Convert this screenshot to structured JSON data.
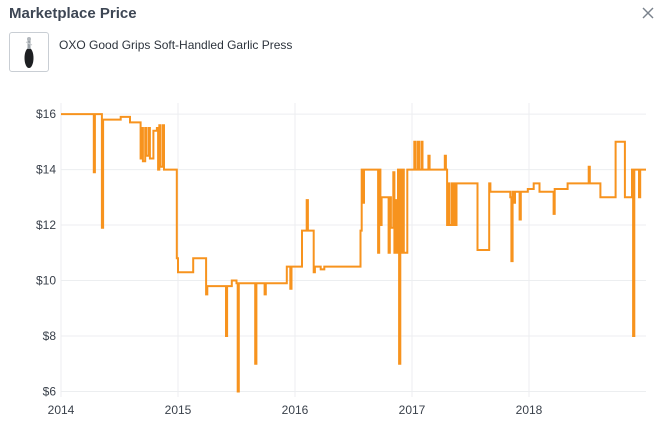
{
  "header": {
    "title": "Marketplace Price",
    "close_icon": "close-icon"
  },
  "product": {
    "name": "OXO Good Grips Soft-Handled Garlic Press",
    "thumbnail_icon": "garlic-press-thumbnail"
  },
  "colors": {
    "line": "#f7931e",
    "grid": "#eceef0",
    "text": "#3a414b"
  },
  "chart_data": {
    "type": "line",
    "title": "",
    "xlabel": "",
    "ylabel": "",
    "xlim": [
      2014.0,
      2019.0
    ],
    "ylim": [
      5.8,
      16.4
    ],
    "grid": true,
    "legend": "none",
    "x_ticks": [
      {
        "value": 2014,
        "label": "2014"
      },
      {
        "value": 2015,
        "label": "2015"
      },
      {
        "value": 2016,
        "label": "2016"
      },
      {
        "value": 2017,
        "label": "2017"
      },
      {
        "value": 2018,
        "label": "2018"
      }
    ],
    "y_ticks": [
      {
        "value": 6,
        "label": "$6"
      },
      {
        "value": 8,
        "label": "$8"
      },
      {
        "value": 10,
        "label": "$10"
      },
      {
        "value": 12,
        "label": "$12"
      },
      {
        "value": 14,
        "label": "$14"
      },
      {
        "value": 16,
        "label": "$16"
      }
    ],
    "series": [
      {
        "step": true,
        "points": [
          [
            2014.0,
            16.0
          ],
          [
            2014.27,
            16.0
          ],
          [
            2014.28,
            13.9
          ],
          [
            2014.29,
            16.0
          ],
          [
            2014.34,
            16.0
          ],
          [
            2014.35,
            11.9
          ],
          [
            2014.36,
            15.8
          ],
          [
            2014.4,
            15.8
          ],
          [
            2014.45,
            15.8
          ],
          [
            2014.51,
            15.9
          ],
          [
            2014.58,
            15.9
          ],
          [
            2014.59,
            15.7
          ],
          [
            2014.67,
            15.7
          ],
          [
            2014.68,
            14.4
          ],
          [
            2014.69,
            15.5
          ],
          [
            2014.7,
            14.3
          ],
          [
            2014.72,
            15.5
          ],
          [
            2014.73,
            14.5
          ],
          [
            2014.75,
            15.5
          ],
          [
            2014.76,
            14.4
          ],
          [
            2014.79,
            15.4
          ],
          [
            2014.8,
            15.4
          ],
          [
            2014.82,
            15.5
          ],
          [
            2014.83,
            14.0
          ],
          [
            2014.84,
            15.6
          ],
          [
            2014.85,
            14.1
          ],
          [
            2014.87,
            15.6
          ],
          [
            2014.88,
            14.0
          ],
          [
            2014.98,
            14.0
          ],
          [
            2014.99,
            10.8
          ],
          [
            2015.0,
            10.3
          ],
          [
            2015.12,
            10.3
          ],
          [
            2015.13,
            10.8
          ],
          [
            2015.23,
            10.8
          ],
          [
            2015.24,
            9.5
          ],
          [
            2015.25,
            9.8
          ],
          [
            2015.4,
            9.8
          ],
          [
            2015.41,
            8.0
          ],
          [
            2015.42,
            9.8
          ],
          [
            2015.45,
            9.8
          ],
          [
            2015.46,
            10.0
          ],
          [
            2015.5,
            9.9
          ],
          [
            2015.51,
            6.0
          ],
          [
            2015.52,
            9.9
          ],
          [
            2015.65,
            9.9
          ],
          [
            2015.66,
            7.0
          ],
          [
            2015.67,
            9.9
          ],
          [
            2015.73,
            9.9
          ],
          [
            2015.74,
            9.5
          ],
          [
            2015.75,
            9.9
          ],
          [
            2015.92,
            9.9
          ],
          [
            2015.93,
            10.5
          ],
          [
            2015.95,
            10.5
          ],
          [
            2015.96,
            9.7
          ],
          [
            2015.97,
            10.5
          ],
          [
            2016.05,
            10.5
          ],
          [
            2016.06,
            11.8
          ],
          [
            2016.09,
            11.8
          ],
          [
            2016.1,
            12.9
          ],
          [
            2016.11,
            11.8
          ],
          [
            2016.15,
            11.8
          ],
          [
            2016.16,
            10.3
          ],
          [
            2016.17,
            10.5
          ],
          [
            2016.22,
            10.4
          ],
          [
            2016.25,
            10.5
          ],
          [
            2016.55,
            10.5
          ],
          [
            2016.56,
            11.8
          ],
          [
            2016.57,
            14.0
          ],
          [
            2016.58,
            12.8
          ],
          [
            2016.59,
            14.0
          ],
          [
            2016.7,
            14.0
          ],
          [
            2016.71,
            11.0
          ],
          [
            2016.72,
            14.0
          ],
          [
            2016.73,
            12.0
          ],
          [
            2016.74,
            13.0
          ],
          [
            2016.79,
            13.0
          ],
          [
            2016.8,
            11.0
          ],
          [
            2016.81,
            13.0
          ],
          [
            2016.82,
            11.9
          ],
          [
            2016.84,
            13.9
          ],
          [
            2016.85,
            11.0
          ],
          [
            2016.86,
            12.9
          ],
          [
            2016.87,
            11.0
          ],
          [
            2016.88,
            14.0
          ],
          [
            2016.89,
            7.0
          ],
          [
            2016.9,
            14.0
          ],
          [
            2016.91,
            11.0
          ],
          [
            2016.92,
            14.0
          ],
          [
            2016.93,
            11.0
          ],
          [
            2016.96,
            14.0
          ],
          [
            2017.0,
            14.0
          ],
          [
            2017.02,
            15.0
          ],
          [
            2017.03,
            14.0
          ],
          [
            2017.05,
            15.0
          ],
          [
            2017.06,
            14.0
          ],
          [
            2017.08,
            15.0
          ],
          [
            2017.09,
            14.0
          ],
          [
            2017.13,
            14.0
          ],
          [
            2017.14,
            14.5
          ],
          [
            2017.15,
            14.0
          ],
          [
            2017.27,
            14.0
          ],
          [
            2017.28,
            14.5
          ],
          [
            2017.29,
            14.0
          ],
          [
            2017.3,
            12.0
          ],
          [
            2017.31,
            13.5
          ],
          [
            2017.32,
            12.0
          ],
          [
            2017.34,
            13.5
          ],
          [
            2017.35,
            12.0
          ],
          [
            2017.36,
            13.5
          ],
          [
            2017.37,
            12.0
          ],
          [
            2017.38,
            13.5
          ],
          [
            2017.55,
            13.5
          ],
          [
            2017.56,
            11.1
          ],
          [
            2017.65,
            11.1
          ],
          [
            2017.66,
            13.5
          ],
          [
            2017.67,
            13.2
          ],
          [
            2017.83,
            13.2
          ],
          [
            2017.84,
            13.0
          ],
          [
            2017.85,
            10.7
          ],
          [
            2017.86,
            13.2
          ],
          [
            2017.87,
            12.8
          ],
          [
            2017.88,
            13.2
          ],
          [
            2017.91,
            13.2
          ],
          [
            2017.92,
            12.2
          ],
          [
            2017.93,
            13.2
          ],
          [
            2017.98,
            13.2
          ],
          [
            2017.99,
            13.3
          ],
          [
            2018.03,
            13.3
          ],
          [
            2018.04,
            13.5
          ],
          [
            2018.08,
            13.5
          ],
          [
            2018.09,
            13.2
          ],
          [
            2018.2,
            13.2
          ],
          [
            2018.21,
            12.4
          ],
          [
            2018.22,
            13.3
          ],
          [
            2018.32,
            13.3
          ],
          [
            2018.33,
            13.5
          ],
          [
            2018.5,
            13.5
          ],
          [
            2018.51,
            14.1
          ],
          [
            2018.52,
            13.5
          ],
          [
            2018.6,
            13.5
          ],
          [
            2018.61,
            13.0
          ],
          [
            2018.73,
            13.0
          ],
          [
            2018.74,
            15.0
          ],
          [
            2018.81,
            15.0
          ],
          [
            2018.82,
            13.0
          ],
          [
            2018.87,
            13.0
          ],
          [
            2018.88,
            14.0
          ],
          [
            2018.89,
            8.0
          ],
          [
            2018.9,
            14.0
          ],
          [
            2018.93,
            14.0
          ],
          [
            2018.94,
            13.0
          ],
          [
            2018.95,
            14.0
          ],
          [
            2019.0,
            14.0
          ]
        ]
      }
    ]
  }
}
